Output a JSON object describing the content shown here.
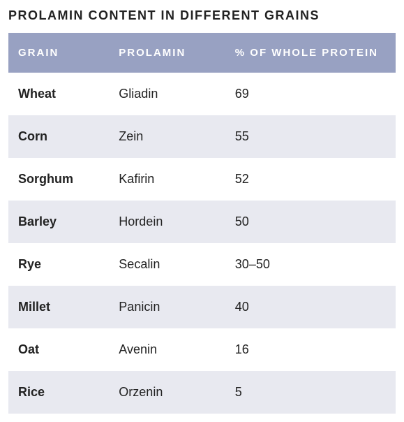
{
  "title": "PROLAMIN CONTENT IN DIFFERENT GRAINS",
  "columns": {
    "grain": "GRAIN",
    "prolamin": "PROLAMIN",
    "pct": "% OF WHOLE PROTEIN"
  },
  "rows": [
    {
      "grain": "Wheat",
      "prolamin": "Gliadin",
      "pct": "69"
    },
    {
      "grain": "Corn",
      "prolamin": "Zein",
      "pct": "55"
    },
    {
      "grain": "Sorghum",
      "prolamin": "Kafirin",
      "pct": "52"
    },
    {
      "grain": "Barley",
      "prolamin": "Hordein",
      "pct": "50"
    },
    {
      "grain": "Rye",
      "prolamin": "Secalin",
      "pct": "30–50"
    },
    {
      "grain": "Millet",
      "prolamin": "Panicin",
      "pct": "40"
    },
    {
      "grain": "Oat",
      "prolamin": "Avenin",
      "pct": "16"
    },
    {
      "grain": "Rice",
      "prolamin": "Orzenin",
      "pct": "5"
    }
  ],
  "colors": {
    "header_bg": "#98a1c2",
    "header_text": "#ffffff",
    "row_odd_bg": "#ffffff",
    "row_even_bg": "#e8e9f0",
    "text": "#222222"
  },
  "typography": {
    "title_fontsize": 18,
    "title_letter_spacing": 1.5,
    "header_fontsize": 15,
    "header_letter_spacing": 2,
    "cell_fontsize": 18
  },
  "column_widths_pct": {
    "grain": 26,
    "prolamin": 30,
    "pct": 44
  }
}
